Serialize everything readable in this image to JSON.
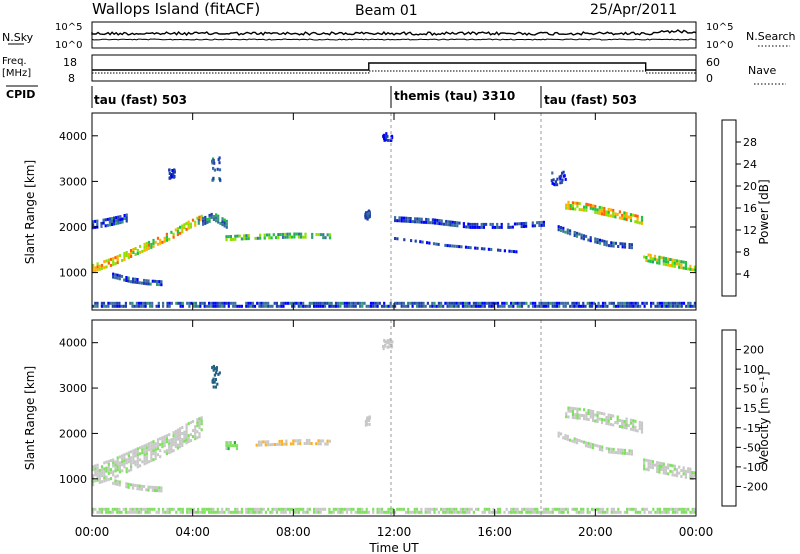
{
  "header": {
    "title": "Wallops Island (fitACF)",
    "beam": "Beam 01",
    "date": "25/Apr/2011"
  },
  "sky_panel": {
    "left_label": "N.Sky",
    "right_label": "N.Search",
    "left_ticks": [
      "10^5",
      "10^0"
    ],
    "right_ticks": [
      "10^5",
      "10^0"
    ]
  },
  "freq_panel": {
    "left_label": "Freq.",
    "left_unit": "[MHz]",
    "right_label": "Nave",
    "left_ticks": [
      "18",
      "8"
    ],
    "right_ticks": [
      "60",
      "0"
    ]
  },
  "cpid": {
    "label": "CPID",
    "segments": [
      {
        "start_hour": 0,
        "text": "tau (fast) 503"
      },
      {
        "start_hour": 12,
        "text": "themis (tau) 3310"
      },
      {
        "start_hour": 18,
        "text": "tau (fast) 503"
      }
    ]
  },
  "colors": {
    "power_scale": [
      "#0000ff",
      "#1e3ea8",
      "#3a6ea0",
      "#2e9e6e",
      "#20c040",
      "#8ee000",
      "#ffb000",
      "#ff6000",
      "#ff0000"
    ],
    "velocity_scale": [
      "#ff0000",
      "#ff7000",
      "#ffb020",
      "#c8c8c8",
      "#c8c8c8",
      "#80e060",
      "#20b040",
      "#206080",
      "#0000ff"
    ]
  },
  "chart_data": [
    {
      "type": "heatmap",
      "name": "power",
      "xlabel": "",
      "ylabel": "Slant Range [km]",
      "xlim": [
        0,
        24
      ],
      "ylim": [
        180,
        4500
      ],
      "yticks": [
        1000,
        2000,
        3000,
        4000
      ],
      "colorbar_label": "Power [dB]",
      "colorbar_range": [
        0,
        30
      ],
      "colorbar_ticks": [
        "4",
        "8",
        "12",
        "16",
        "20",
        "24",
        "28"
      ],
      "bands": [
        {
          "x": [
            0.0,
            0.8,
            1.6,
            2.4,
            3.2,
            3.8,
            4.4
          ],
          "y": [
            1100,
            1250,
            1450,
            1650,
            1850,
            2050,
            2200
          ],
          "thickness_km": 180,
          "value": 20
        },
        {
          "x": [
            0.0,
            0.5,
            1.0,
            1.5
          ],
          "y": [
            2080,
            2120,
            2180,
            2250
          ],
          "thickness_km": 140,
          "value": 6
        },
        {
          "x": [
            0.8,
            1.5,
            2.2,
            2.8
          ],
          "y": [
            950,
            850,
            800,
            780
          ],
          "thickness_km": 100,
          "value": 6
        },
        {
          "x": [
            4.2,
            4.8,
            5.4
          ],
          "y": [
            2100,
            2250,
            2050
          ],
          "thickness_km": 160,
          "value": 10
        },
        {
          "x": [
            5.3,
            6.0,
            7.0,
            8.0,
            9.5
          ],
          "y": [
            1760,
            1780,
            1800,
            1820,
            1800
          ],
          "thickness_km": 120,
          "value": 14
        },
        {
          "x": [
            12.0,
            13.0,
            14.0,
            15.0,
            16.0,
            17.0
          ],
          "y": [
            1750,
            1680,
            1600,
            1550,
            1500,
            1450
          ],
          "thickness_km": 60,
          "value": 5
        },
        {
          "x": [
            12.0,
            13.5,
            15.0,
            16.5,
            18.0
          ],
          "y": [
            2200,
            2150,
            2050,
            2050,
            2100
          ],
          "thickness_km": 80,
          "value": 5
        },
        {
          "x": [
            18.8,
            19.6,
            20.4,
            21.2,
            21.9
          ],
          "y": [
            2500,
            2450,
            2350,
            2250,
            2150
          ],
          "thickness_km": 160,
          "value": 20
        },
        {
          "x": [
            18.5,
            19.5,
            20.5,
            21.5
          ],
          "y": [
            2000,
            1800,
            1650,
            1600
          ],
          "thickness_km": 80,
          "value": 6
        },
        {
          "x": [
            21.9,
            22.5,
            23.2,
            24.0
          ],
          "y": [
            1350,
            1280,
            1200,
            1120
          ],
          "thickness_km": 180,
          "value": 18
        },
        {
          "x": [
            0.0,
            6.0,
            12.0,
            18.0,
            24.0
          ],
          "y": [
            300,
            300,
            300,
            300,
            300
          ],
          "thickness_km": 120,
          "value": 6
        }
      ],
      "patches": [
        {
          "x": 4.9,
          "y": 3300,
          "w_hours": 0.35,
          "h_km": 500,
          "value": 8
        },
        {
          "x": 10.9,
          "y": 2300,
          "w_hours": 0.2,
          "h_km": 200,
          "value": 6
        },
        {
          "x": 11.7,
          "y": 4000,
          "w_hours": 0.4,
          "h_km": 200,
          "value": 4
        },
        {
          "x": 18.5,
          "y": 3100,
          "w_hours": 0.6,
          "h_km": 300,
          "value": 4
        },
        {
          "x": 3.1,
          "y": 3200,
          "w_hours": 0.3,
          "h_km": 200,
          "value": 4
        }
      ]
    },
    {
      "type": "heatmap",
      "name": "velocity",
      "xlabel": "Time UT",
      "ylabel": "Slant Range [km]",
      "xlim": [
        0,
        24
      ],
      "ylim": [
        180,
        4500
      ],
      "yticks": [
        1000,
        2000,
        3000,
        4000
      ],
      "xticks": [
        "00:00",
        "04:00",
        "08:00",
        "12:00",
        "16:00",
        "20:00",
        "00:00"
      ],
      "colorbar_label": "Velocity [m s⁻¹]",
      "colorbar_ticks": [
        "-200",
        "-100",
        "-50",
        "-15",
        "15",
        "50",
        "100",
        "200"
      ],
      "bands": [
        {
          "x": [
            0.0,
            0.8,
            1.6,
            2.4,
            3.2,
            3.8,
            4.4
          ],
          "y": [
            1100,
            1250,
            1450,
            1650,
            1850,
            2050,
            2200
          ],
          "thickness_km": 400,
          "value": 0
        },
        {
          "x": [
            0.8,
            1.5,
            2.2,
            2.8
          ],
          "y": [
            950,
            850,
            800,
            780
          ],
          "thickness_km": 100,
          "value": 0
        },
        {
          "x": [
            5.3,
            5.8
          ],
          "y": [
            1760,
            1760
          ],
          "thickness_km": 140,
          "value": 40
        },
        {
          "x": [
            6.5,
            7.5,
            8.5,
            9.5
          ],
          "y": [
            1780,
            1800,
            1820,
            1800
          ],
          "thickness_km": 120,
          "value": -40
        },
        {
          "x": [
            18.8,
            19.6,
            20.4,
            21.2,
            21.9
          ],
          "y": [
            2500,
            2450,
            2350,
            2250,
            2150
          ],
          "thickness_km": 200,
          "value": 0
        },
        {
          "x": [
            18.5,
            19.5,
            20.5,
            21.5
          ],
          "y": [
            2000,
            1800,
            1650,
            1600
          ],
          "thickness_km": 80,
          "value": 0
        },
        {
          "x": [
            21.9,
            22.5,
            23.2,
            24.0
          ],
          "y": [
            1350,
            1280,
            1200,
            1120
          ],
          "thickness_km": 200,
          "value": 0
        },
        {
          "x": [
            0.0,
            6.0,
            12.0,
            18.0,
            24.0
          ],
          "y": [
            300,
            300,
            300,
            300,
            300
          ],
          "thickness_km": 120,
          "value": 20
        }
      ],
      "patches": [
        {
          "x": 4.9,
          "y": 3300,
          "w_hours": 0.35,
          "h_km": 500,
          "value": 150
        },
        {
          "x": 10.9,
          "y": 2300,
          "w_hours": 0.2,
          "h_km": 200,
          "value": 0
        },
        {
          "x": 11.7,
          "y": 4000,
          "w_hours": 0.4,
          "h_km": 200,
          "value": 0
        }
      ]
    }
  ]
}
